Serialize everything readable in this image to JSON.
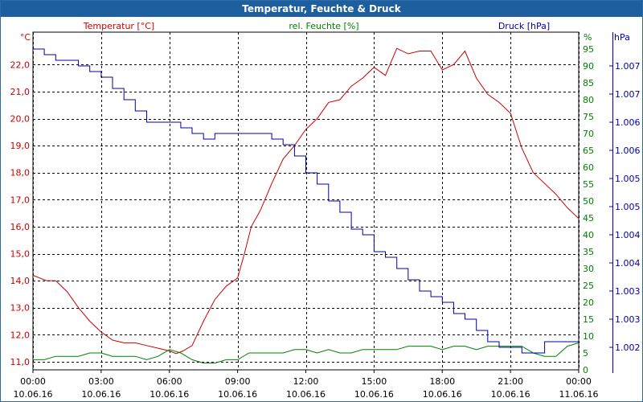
{
  "window": {
    "title": "Temperatur, Feuchte & Druck"
  },
  "colors": {
    "temperature": "#cc0000",
    "humidity": "#008000",
    "pressure": "#0000aa",
    "titlebar": "#1c5e9e",
    "grid": "#000000"
  },
  "chart_data": {
    "type": "line",
    "title": "Temperatur, Feuchte & Druck",
    "grid": true,
    "x": {
      "range_hours": [
        0,
        24
      ],
      "ticks": [
        {
          "hour": 0,
          "time": "00:00",
          "date": "10.06.16"
        },
        {
          "hour": 3,
          "time": "03:00",
          "date": "10.06.16"
        },
        {
          "hour": 6,
          "time": "06:00",
          "date": "10.06.16"
        },
        {
          "hour": 9,
          "time": "09:00",
          "date": "10.06.16"
        },
        {
          "hour": 12,
          "time": "12:00",
          "date": "10.06.16"
        },
        {
          "hour": 15,
          "time": "15:00",
          "date": "10.06.16"
        },
        {
          "hour": 18,
          "time": "18:00",
          "date": "10.06.16"
        },
        {
          "hour": 21,
          "time": "21:00",
          "date": "10.06.16"
        },
        {
          "hour": 24,
          "time": "00:00",
          "date": "11.06.16"
        }
      ]
    },
    "axes": {
      "temperature": {
        "label": "Temperatur [°C]",
        "unit": "°C",
        "range": [
          10.7,
          23.2
        ],
        "ticks": [
          "11,0",
          "12,0",
          "13,0",
          "14,0",
          "15,0",
          "16,0",
          "17,0",
          "18,0",
          "19,0",
          "20,0",
          "21,0",
          "22,0"
        ],
        "tick_values": [
          11,
          12,
          13,
          14,
          15,
          16,
          17,
          18,
          19,
          20,
          21,
          22
        ]
      },
      "humidity": {
        "label": "rel. Feuchte [%]",
        "unit": "%",
        "range": [
          0,
          100
        ],
        "ticks": [
          "0",
          "5",
          "10",
          "15",
          "20",
          "25",
          "30",
          "35",
          "40",
          "45",
          "50",
          "55",
          "60",
          "65",
          "70",
          "75",
          "80",
          "85",
          "90",
          "95"
        ],
        "tick_values": [
          0,
          5,
          10,
          15,
          20,
          25,
          30,
          35,
          40,
          45,
          50,
          55,
          60,
          65,
          70,
          75,
          80,
          85,
          90,
          95
        ]
      },
      "pressure": {
        "label": "Druck [hPa]",
        "unit": "hPa",
        "range": [
          1001.6,
          1007.6
        ],
        "ticks": [
          "1.002",
          "1.003",
          "1.003",
          "1.004",
          "1.004",
          "1.005",
          "1.005",
          "1.006",
          "1.006",
          "1.007",
          "1.007"
        ],
        "tick_values": [
          1002.0,
          1002.5,
          1003.0,
          1003.5,
          1004.0,
          1004.5,
          1005.0,
          1005.5,
          1006.0,
          1006.5,
          1007.0
        ]
      }
    },
    "series": [
      {
        "name": "Temperatur [°C]",
        "axis": "temperature",
        "hours": [
          0,
          0.3,
          0.6,
          1,
          1.5,
          2,
          2.5,
          3,
          3.5,
          4,
          4.5,
          5,
          5.5,
          6,
          6.3,
          6.6,
          7,
          7.5,
          8,
          8.5,
          9,
          9.3,
          9.6,
          10,
          10.5,
          11,
          11.5,
          12,
          12.5,
          13,
          13.5,
          14,
          14.5,
          15,
          15.5,
          16,
          16.5,
          17,
          17.5,
          18,
          18.5,
          19,
          19.5,
          20,
          20.5,
          21,
          21.5,
          22,
          22.5,
          23,
          23.5,
          24
        ],
        "values": [
          14.2,
          14.1,
          14.0,
          14.0,
          13.6,
          13.0,
          12.5,
          12.1,
          11.8,
          11.7,
          11.7,
          11.6,
          11.5,
          11.4,
          11.3,
          11.4,
          11.6,
          12.5,
          13.3,
          13.8,
          14.1,
          15.0,
          16.0,
          16.6,
          17.6,
          18.5,
          19.0,
          19.6,
          20.0,
          20.6,
          20.7,
          21.2,
          21.5,
          21.9,
          21.6,
          22.6,
          22.4,
          22.5,
          22.5,
          21.8,
          22.0,
          22.5,
          21.5,
          20.9,
          20.6,
          20.2,
          18.9,
          18.0,
          17.6,
          17.2,
          16.7,
          16.3
        ]
      },
      {
        "name": "rel. Feuchte [%]",
        "axis": "humidity",
        "hours": [
          0,
          0.5,
          1,
          1.5,
          2,
          2.5,
          3,
          3.5,
          4,
          4.5,
          5,
          5.5,
          6,
          6.5,
          7,
          7.5,
          8,
          8.5,
          9,
          9.5,
          10,
          10.5,
          11,
          11.5,
          12,
          12.5,
          13,
          13.5,
          14,
          14.5,
          15,
          15.5,
          16,
          16.5,
          17,
          17.5,
          18,
          18.5,
          19,
          19.5,
          20,
          20.5,
          21,
          21.5,
          22,
          22.5,
          23,
          23.5,
          24
        ],
        "values": [
          3,
          3,
          4,
          4,
          4,
          5,
          5,
          4,
          4,
          4,
          3,
          4,
          6,
          5,
          3,
          2,
          2,
          3,
          3,
          5,
          5,
          5,
          5,
          6,
          6,
          5,
          6,
          5,
          5,
          6,
          6,
          6,
          6,
          7,
          7,
          7,
          6,
          7,
          7,
          6,
          7,
          7,
          7,
          7,
          5,
          4,
          4,
          7,
          8
        ]
      },
      {
        "name": "Druck [hPa]",
        "axis": "pressure",
        "hours": [
          0,
          0.5,
          1,
          1.5,
          2,
          2.5,
          3,
          3.5,
          4,
          4.5,
          5,
          5.5,
          6,
          6.5,
          7,
          7.5,
          8,
          8.5,
          9,
          9.5,
          10,
          10.5,
          11,
          11.5,
          12,
          12.5,
          13,
          13.5,
          14,
          14.5,
          15,
          15.5,
          16,
          16.5,
          17,
          17.5,
          18,
          18.5,
          19,
          19.5,
          20,
          20.5,
          21,
          21.5,
          22,
          22.5,
          23,
          23.5,
          24
        ],
        "values": [
          1007.3,
          1007.2,
          1007.1,
          1007.1,
          1007.0,
          1006.9,
          1006.8,
          1006.6,
          1006.4,
          1006.2,
          1006.0,
          1006.0,
          1006.0,
          1005.9,
          1005.8,
          1005.7,
          1005.8,
          1005.8,
          1005.8,
          1005.8,
          1005.8,
          1005.7,
          1005.6,
          1005.4,
          1005.1,
          1004.9,
          1004.6,
          1004.4,
          1004.1,
          1004.0,
          1003.7,
          1003.6,
          1003.4,
          1003.2,
          1003.0,
          1002.9,
          1002.8,
          1002.6,
          1002.5,
          1002.3,
          1002.1,
          1002.0,
          1002.0,
          1001.9,
          1001.9,
          1002.1,
          1002.1,
          1002.1,
          1002.1
        ]
      }
    ]
  }
}
